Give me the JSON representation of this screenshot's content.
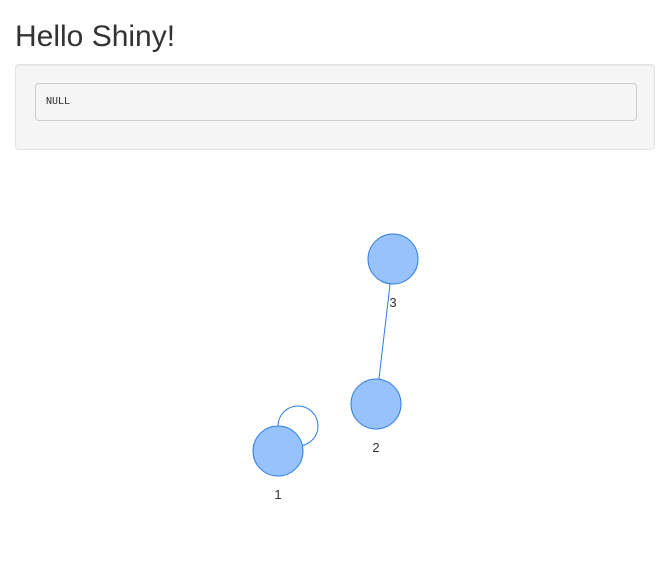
{
  "page": {
    "title": "Hello Shiny!"
  },
  "output": {
    "text": "NULL"
  },
  "graph": {
    "node_color": "#97c2fc",
    "node_border_color": "#2b7ce9",
    "edge_color": "#2b7ce9",
    "nodes": [
      {
        "id": 1,
        "label": "1"
      },
      {
        "id": 2,
        "label": "2"
      },
      {
        "id": 3,
        "label": "3"
      }
    ],
    "edges": [
      {
        "from": 2,
        "to": 3
      },
      {
        "from": 1,
        "to": 1
      }
    ]
  }
}
